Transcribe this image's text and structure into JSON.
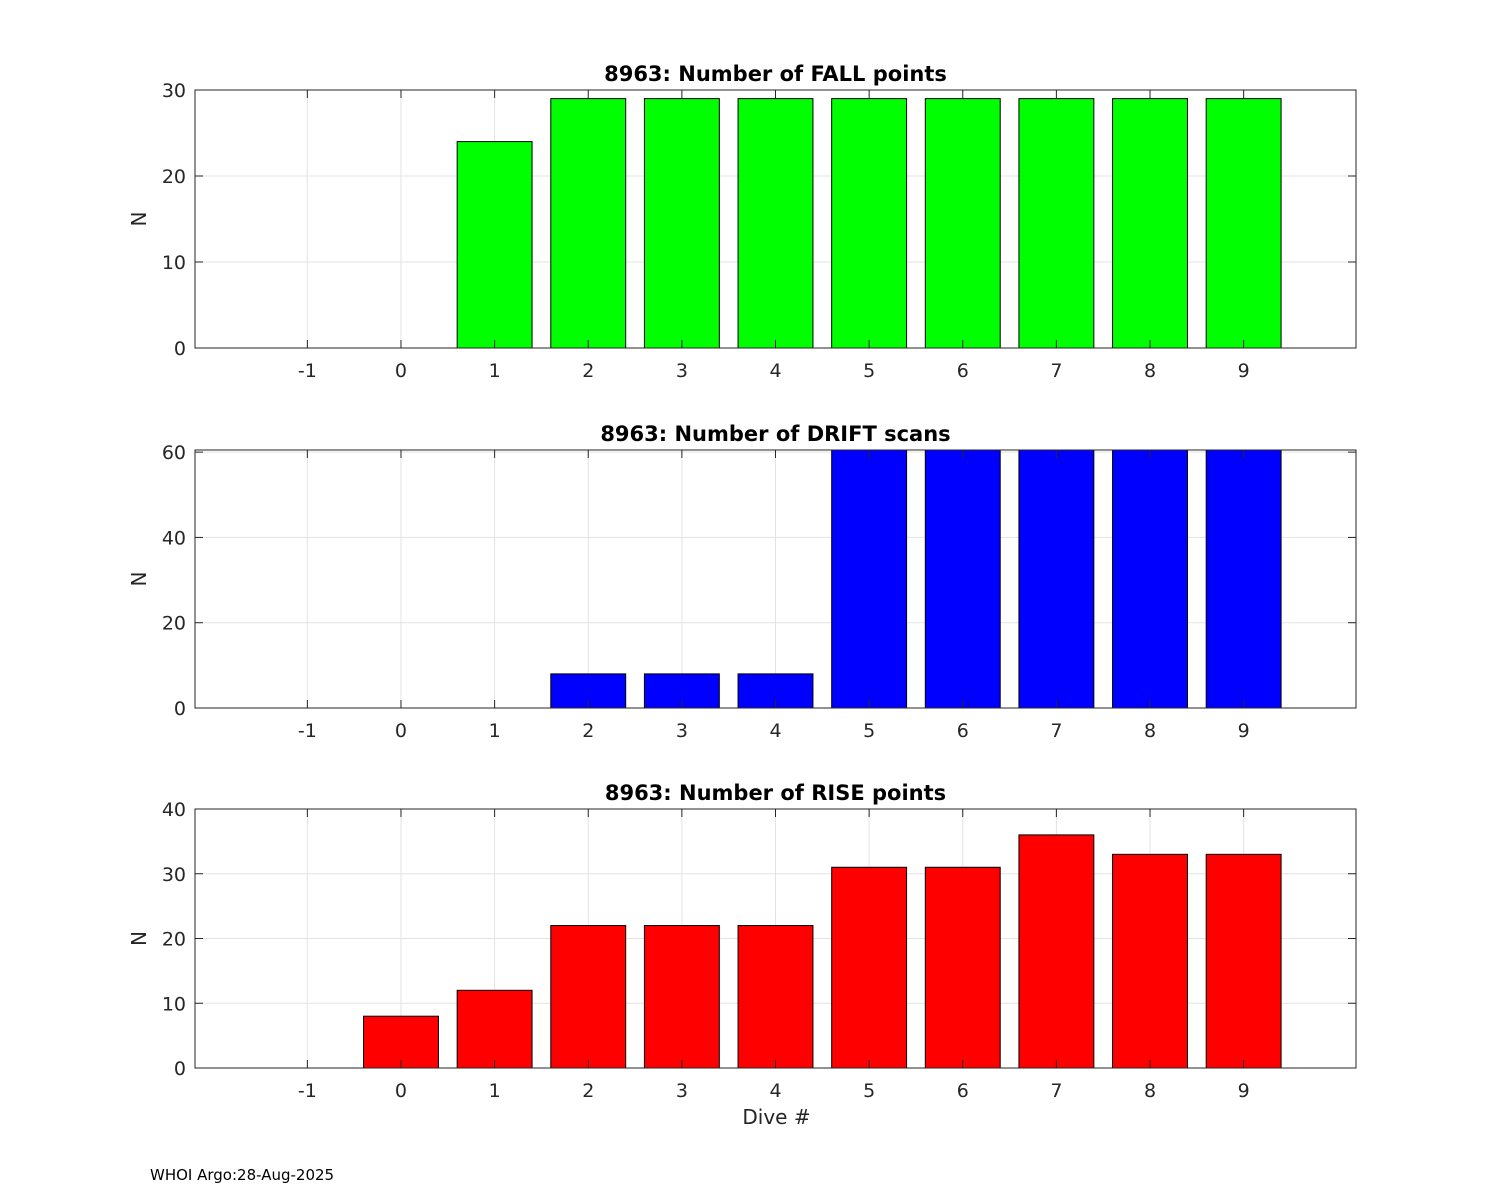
{
  "footer": "WHOI Argo:28-Aug-2025",
  "chart_data": [
    {
      "type": "bar",
      "title": "8963: Number of FALL points",
      "xlabel": "",
      "ylabel": "N",
      "xlim": [
        -2.2,
        10.2
      ],
      "ylim": [
        0,
        30
      ],
      "yticks": [
        0,
        10,
        20,
        30
      ],
      "categories": [
        "-1",
        "0",
        "1",
        "2",
        "3",
        "4",
        "5",
        "6",
        "7",
        "8",
        "9"
      ],
      "values": [
        0,
        0,
        24,
        29,
        29,
        29,
        29,
        29,
        29,
        29,
        29
      ],
      "color": "#00ff00",
      "grid": true
    },
    {
      "type": "bar",
      "title": "8963: Number of DRIFT scans",
      "xlabel": "",
      "ylabel": "N",
      "xlim": [
        -2.2,
        10.2
      ],
      "ylim": [
        0,
        60.5
      ],
      "yticks": [
        0,
        20,
        40,
        60
      ],
      "categories": [
        "-1",
        "0",
        "1",
        "2",
        "3",
        "4",
        "5",
        "6",
        "7",
        "8",
        "9"
      ],
      "values": [
        0,
        0,
        0,
        8,
        8,
        8,
        61,
        61,
        61,
        61,
        61
      ],
      "color": "#0000ff",
      "grid": true
    },
    {
      "type": "bar",
      "title": "8963: Number of RISE points",
      "xlabel": "Dive #",
      "ylabel": "N",
      "xlim": [
        -2.2,
        10.2
      ],
      "ylim": [
        0,
        40
      ],
      "yticks": [
        0,
        10,
        20,
        30,
        40
      ],
      "categories": [
        "-1",
        "0",
        "1",
        "2",
        "3",
        "4",
        "5",
        "6",
        "7",
        "8",
        "9"
      ],
      "values": [
        0,
        8,
        12,
        22,
        22,
        22,
        31,
        31,
        36,
        33,
        33
      ],
      "color": "#ff0000",
      "grid": true
    }
  ]
}
